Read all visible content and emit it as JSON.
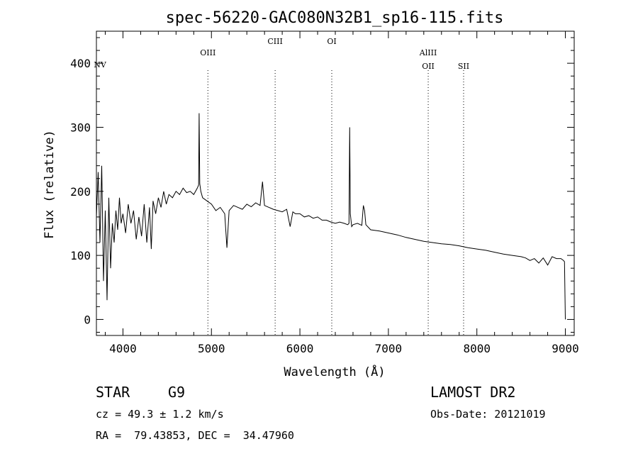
{
  "chart_data": {
    "type": "line",
    "title": "spec-56220-GAC080N32B1_sp16-115.fits",
    "xlabel": "Wavelength (Å)",
    "ylabel": "Flux (relative)",
    "xlim": [
      3700,
      9100
    ],
    "ylim": [
      -25,
      450
    ],
    "xticks": [
      4000,
      5000,
      6000,
      7000,
      8000,
      9000
    ],
    "yticks": [
      0,
      100,
      200,
      300,
      400
    ],
    "grid": false,
    "series": [
      {
        "x": [
          3700,
          3720,
          3740,
          3760,
          3780,
          3800,
          3820,
          3840,
          3860,
          3880,
          3900,
          3920,
          3940,
          3960,
          3980,
          4000,
          4030,
          4060,
          4090,
          4120,
          4150,
          4180,
          4210,
          4240,
          4270,
          4300,
          4320,
          4340,
          4370,
          4400,
          4430,
          4460,
          4490,
          4520,
          4560,
          4600,
          4640,
          4680,
          4720,
          4760,
          4800,
          4840,
          4855,
          4861,
          4868,
          4880,
          4900,
          4950,
          5000,
          5050,
          5100,
          5150,
          5175,
          5200,
          5250,
          5300,
          5350,
          5400,
          5450,
          5500,
          5550,
          5577,
          5600,
          5650,
          5700,
          5750,
          5800,
          5850,
          5890,
          5920,
          5950,
          6000,
          6050,
          6100,
          6150,
          6200,
          6250,
          6300,
          6350,
          6400,
          6450,
          6500,
          6540,
          6555,
          6563,
          6570,
          6585,
          6600,
          6650,
          6700,
          6717,
          6731,
          6745,
          6800,
          6900,
          7000,
          7100,
          7200,
          7300,
          7400,
          7500,
          7600,
          7700,
          7800,
          7900,
          8000,
          8100,
          8200,
          8300,
          8400,
          8500,
          8550,
          8600,
          8650,
          8700,
          8750,
          8800,
          8850,
          8900,
          8950,
          8980,
          8990,
          9000
        ],
        "y": [
          160,
          230,
          120,
          240,
          60,
          170,
          30,
          190,
          80,
          150,
          120,
          170,
          140,
          190,
          150,
          165,
          135,
          180,
          150,
          170,
          125,
          160,
          130,
          180,
          120,
          175,
          110,
          185,
          165,
          190,
          175,
          200,
          180,
          195,
          190,
          200,
          195,
          205,
          198,
          200,
          195,
          205,
          210,
          322,
          212,
          200,
          190,
          185,
          180,
          170,
          175,
          165,
          112,
          170,
          178,
          175,
          172,
          180,
          176,
          182,
          178,
          215,
          178,
          175,
          172,
          170,
          168,
          172,
          145,
          168,
          165,
          165,
          160,
          162,
          158,
          160,
          155,
          155,
          152,
          150,
          152,
          150,
          148,
          150,
          300,
          165,
          145,
          148,
          150,
          147,
          178,
          170,
          148,
          140,
          138,
          135,
          132,
          128,
          125,
          122,
          120,
          118,
          117,
          115,
          112,
          110,
          108,
          105,
          102,
          100,
          98,
          96,
          92,
          95,
          88,
          96,
          85,
          98,
          95,
          95,
          92,
          90,
          0
        ]
      }
    ],
    "lines": [
      {
        "label": "NV",
        "x": 3740
      },
      {
        "label": "OIII",
        "x": 4960
      },
      {
        "label": "CIII",
        "x": 5720
      },
      {
        "label": "OI",
        "x": 6360
      },
      {
        "label": "AlIII",
        "x": 7450
      },
      {
        "label": "OII",
        "x": 7450
      },
      {
        "label": "SII",
        "x": 7850
      }
    ]
  },
  "info": {
    "class_label": "STAR",
    "subclass_label": "G9",
    "survey": "LAMOST DR2",
    "cz": "cz = 49.3 ± 1.2 km/s",
    "obs_date": "Obs-Date: 20121019",
    "radec": "RA =  79.43853, DEC =  34.47960"
  }
}
